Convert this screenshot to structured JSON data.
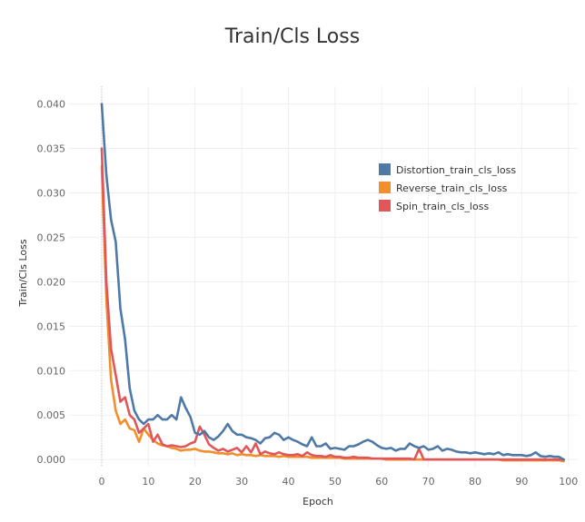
{
  "chart_data": {
    "type": "line",
    "title": "Train/Cls Loss",
    "xlabel": "Epoch",
    "ylabel": "Train/Cls Loss",
    "xlim": [
      -7,
      102
    ],
    "ylim": [
      -0.0008,
      0.042
    ],
    "xticks": [
      0,
      10,
      20,
      30,
      40,
      50,
      60,
      70,
      80,
      90,
      100
    ],
    "yticks": [
      0.0,
      0.005,
      0.01,
      0.015,
      0.02,
      0.025,
      0.03,
      0.035,
      0.04
    ],
    "ytick_labels": [
      "0.000",
      "0.005",
      "0.010",
      "0.015",
      "0.020",
      "0.025",
      "0.030",
      "0.035",
      "0.040"
    ],
    "grid": true,
    "legend_position": "top-right",
    "series": [
      {
        "name": "Distortion_train_cls_loss",
        "color": "#4e79a7",
        "x": [
          0,
          1,
          2,
          3,
          4,
          5,
          6,
          7,
          8,
          9,
          10,
          11,
          12,
          13,
          14,
          15,
          16,
          17,
          18,
          19,
          20,
          21,
          22,
          23,
          24,
          25,
          26,
          27,
          28,
          29,
          30,
          31,
          32,
          33,
          34,
          35,
          36,
          37,
          38,
          39,
          40,
          41,
          42,
          43,
          44,
          45,
          46,
          47,
          48,
          49,
          50,
          51,
          52,
          53,
          54,
          55,
          56,
          57,
          58,
          59,
          60,
          61,
          62,
          63,
          64,
          65,
          66,
          67,
          68,
          69,
          70,
          71,
          72,
          73,
          74,
          75,
          76,
          77,
          78,
          79,
          80,
          81,
          82,
          83,
          84,
          85,
          86,
          87,
          88,
          89,
          90,
          91,
          92,
          93,
          94,
          95,
          96,
          97,
          98,
          99
        ],
        "values": [
          0.04,
          0.032,
          0.027,
          0.0245,
          0.017,
          0.0135,
          0.008,
          0.0055,
          0.0045,
          0.004,
          0.0045,
          0.0045,
          0.005,
          0.0045,
          0.0045,
          0.005,
          0.0045,
          0.007,
          0.0058,
          0.0048,
          0.003,
          0.0028,
          0.0032,
          0.0025,
          0.0022,
          0.0026,
          0.0032,
          0.004,
          0.0032,
          0.0028,
          0.0028,
          0.0025,
          0.0024,
          0.0022,
          0.0018,
          0.0024,
          0.0025,
          0.003,
          0.0028,
          0.0022,
          0.0025,
          0.0022,
          0.002,
          0.0017,
          0.0015,
          0.0025,
          0.0015,
          0.0015,
          0.0018,
          0.0012,
          0.0013,
          0.0012,
          0.0011,
          0.0015,
          0.0015,
          0.0017,
          0.002,
          0.0022,
          0.002,
          0.0016,
          0.0013,
          0.0012,
          0.0013,
          0.001,
          0.0012,
          0.0012,
          0.0018,
          0.0015,
          0.0013,
          0.0015,
          0.0011,
          0.0012,
          0.0015,
          0.001,
          0.0012,
          0.0011,
          0.0009,
          0.0008,
          0.0008,
          0.0007,
          0.0008,
          0.0007,
          0.0006,
          0.0007,
          0.0006,
          0.0008,
          0.0005,
          0.0006,
          0.0005,
          0.0005,
          0.0005,
          0.0004,
          0.0005,
          0.0008,
          0.0004,
          0.0003,
          0.0004,
          0.0003,
          0.0003,
          0.0
        ]
      },
      {
        "name": "Reverse_train_cls_loss",
        "color": "#f28e2b",
        "x": [
          0,
          1,
          2,
          3,
          4,
          5,
          6,
          7,
          8,
          9,
          10,
          11,
          12,
          13,
          14,
          15,
          16,
          17,
          18,
          19,
          20,
          21,
          22,
          23,
          24,
          25,
          26,
          27,
          28,
          29,
          30,
          31,
          32,
          33,
          34,
          35,
          36,
          37,
          38,
          39,
          40,
          41,
          42,
          43,
          44,
          45,
          46,
          47,
          48,
          49,
          50,
          51,
          52,
          53,
          54,
          55,
          56,
          57,
          58,
          59,
          60,
          61,
          62,
          63,
          64,
          65,
          66,
          67,
          68,
          69,
          70,
          71,
          72,
          73,
          74,
          75,
          76,
          77,
          78,
          79,
          80,
          81,
          82,
          83,
          84,
          85,
          86,
          87,
          88,
          89,
          90,
          91,
          92,
          93,
          94,
          95,
          96,
          97,
          98,
          99
        ],
        "values": [
          0.033,
          0.018,
          0.009,
          0.0055,
          0.004,
          0.0045,
          0.0035,
          0.0033,
          0.002,
          0.0035,
          0.0028,
          0.0022,
          0.0018,
          0.0016,
          0.0015,
          0.0013,
          0.0012,
          0.001,
          0.0011,
          0.0011,
          0.0012,
          0.001,
          0.0009,
          0.0009,
          0.0008,
          0.0007,
          0.0007,
          0.0006,
          0.0007,
          0.0005,
          0.0006,
          0.0005,
          0.0005,
          0.0004,
          0.0005,
          0.0004,
          0.0004,
          0.0004,
          0.0003,
          0.0004,
          0.0003,
          0.0003,
          0.0003,
          0.0003,
          0.0003,
          0.0002,
          0.0002,
          0.0002,
          0.0002,
          0.0002,
          0.0002,
          0.0002,
          0.0001,
          0.0001,
          0.0001,
          0.0001,
          0.0001,
          0.0001,
          0.0001,
          0.0001,
          0.0001,
          0.0,
          0.0,
          0.0,
          0.0,
          0.0,
          0.0,
          0.0,
          0.0,
          0.0,
          0.0,
          0.0,
          0.0,
          0.0,
          0.0,
          0.0,
          0.0,
          0.0,
          0.0,
          0.0,
          0.0,
          0.0,
          0.0,
          0.0,
          0.0,
          0.0,
          -0.0001,
          -0.0001,
          -0.0001,
          -0.0001,
          -0.0001,
          -0.0001,
          -0.0001,
          -0.0001,
          -0.0001,
          -0.0001,
          -0.0001,
          -0.0001,
          -0.0001,
          -0.0002
        ]
      },
      {
        "name": "Spin_train_cls_loss",
        "color": "#e15759",
        "x": [
          0,
          1,
          2,
          3,
          4,
          5,
          6,
          7,
          8,
          9,
          10,
          11,
          12,
          13,
          14,
          15,
          16,
          17,
          18,
          19,
          20,
          21,
          22,
          23,
          24,
          25,
          26,
          27,
          28,
          29,
          30,
          31,
          32,
          33,
          34,
          35,
          36,
          37,
          38,
          39,
          40,
          41,
          42,
          43,
          44,
          45,
          46,
          47,
          48,
          49,
          50,
          51,
          52,
          53,
          54,
          55,
          56,
          57,
          58,
          59,
          60,
          61,
          62,
          63,
          64,
          65,
          66,
          67,
          68,
          69,
          70,
          71,
          72,
          73,
          74,
          75,
          76,
          77,
          78,
          79,
          80,
          81,
          82,
          83,
          84,
          85,
          86,
          87,
          88,
          89,
          90,
          91,
          92,
          93,
          94,
          95,
          96,
          97,
          98,
          99
        ],
        "values": [
          0.035,
          0.02,
          0.0125,
          0.0095,
          0.0065,
          0.007,
          0.005,
          0.0045,
          0.003,
          0.0035,
          0.004,
          0.002,
          0.0028,
          0.0017,
          0.0015,
          0.0016,
          0.0015,
          0.0014,
          0.0015,
          0.0018,
          0.002,
          0.0037,
          0.0028,
          0.0017,
          0.0013,
          0.001,
          0.0012,
          0.0009,
          0.0011,
          0.0013,
          0.0008,
          0.0015,
          0.0008,
          0.0018,
          0.0006,
          0.0009,
          0.0007,
          0.0006,
          0.0008,
          0.0006,
          0.0005,
          0.0005,
          0.0006,
          0.0004,
          0.0008,
          0.0005,
          0.0004,
          0.0004,
          0.0003,
          0.0005,
          0.0003,
          0.0003,
          0.0002,
          0.0002,
          0.0003,
          0.0002,
          0.0002,
          0.0002,
          0.0001,
          0.0001,
          0.0001,
          0.0001,
          0.0001,
          0.0001,
          0.0001,
          0.0001,
          0.0001,
          0.0,
          0.0012,
          0.0,
          0.0,
          0.0,
          0.0,
          0.0,
          0.0,
          0.0,
          0.0,
          0.0,
          0.0,
          0.0,
          0.0,
          0.0,
          0.0,
          0.0,
          0.0,
          0.0,
          0.0,
          0.0,
          0.0,
          0.0,
          0.0,
          0.0,
          0.0,
          0.0,
          0.0,
          0.0,
          0.0,
          0.0,
          0.0,
          0.0
        ]
      }
    ]
  }
}
